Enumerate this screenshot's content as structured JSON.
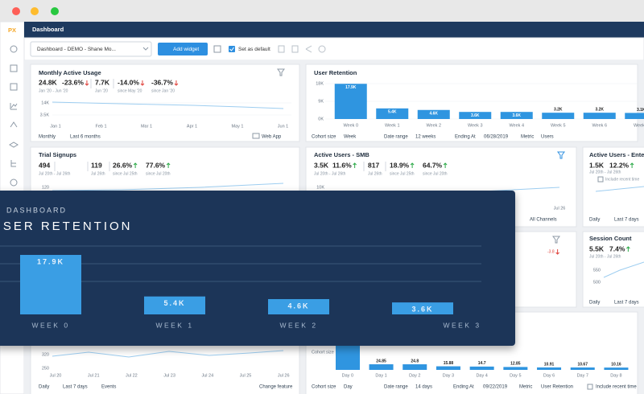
{
  "app": {
    "logo": "PX",
    "header": "Dashboard",
    "dashboard_select": "Dashboard - DEMO - Shane Mo...",
    "add_widget": "Add widget",
    "set_default": "Set as default"
  },
  "mau": {
    "title": "Monthly Active Usage",
    "stats": [
      {
        "value": "24.8K",
        "sub": "Jan '20 - Jun '20"
      },
      {
        "value": "-23.6%"
      },
      {
        "value": "7.7K",
        "sub": "Jun '20"
      },
      {
        "value": "-14.0%",
        "sub": "since May '20"
      },
      {
        "value": "-36.7%",
        "sub": "since Jan '20"
      }
    ],
    "y_labels": [
      "14K",
      "3.5K"
    ],
    "x_labels": [
      "Jan 1",
      "Feb 1",
      "Mar 1",
      "Apr 1",
      "May 1",
      "Jun 1"
    ],
    "footer": [
      "Monthly",
      "Last 6 months",
      "Web App"
    ]
  },
  "user_retention": {
    "title": "User Retention",
    "chart": {
      "type": "bar",
      "categories": [
        "Week 0",
        "Week 1",
        "Week 2",
        "Week 3",
        "Week 4",
        "Week 5",
        "Week 6",
        "Week 7"
      ],
      "values": [
        17900,
        5400,
        4600,
        3600,
        3600,
        3200,
        3200,
        3100
      ],
      "value_labels": [
        "17.9K",
        "5.4K",
        "4.6K",
        "3.6K",
        "3.6K",
        "3.2K",
        "3.2K",
        "3.1K"
      ],
      "ylim": [
        0,
        18000
      ],
      "yticks": [
        {
          "value": 18000,
          "label": "18K"
        },
        {
          "value": 9000,
          "label": "9K"
        },
        {
          "value": 0,
          "label": "0K"
        }
      ]
    },
    "footer": [
      "Cohort size",
      "Week",
      "Date range",
      "12 weeks",
      "Ending At",
      "06/28/2019",
      "Metric",
      "Users"
    ]
  },
  "trial_signups": {
    "title": "Trial Signups",
    "stats": [
      {
        "value": "494",
        "sub": "Jul 20th - Jul 26th"
      },
      {
        "value": "119",
        "sub": "Jul 26th"
      },
      {
        "value": "26.6%",
        "sub": "since Jul 25th"
      },
      {
        "value": "77.6%",
        "sub": "since Jul 20th"
      }
    ],
    "y_labels": [
      "120"
    ]
  },
  "active_smb": {
    "title": "Active Users - SMB",
    "stats": [
      {
        "value": "3.5K",
        "sub": "Jul 20th - Jul 26th"
      },
      {
        "value": "11.6%"
      },
      {
        "value": "817",
        "sub": "Jul 26th"
      },
      {
        "value": "18.9%",
        "sub": "since Jul 25th"
      },
      {
        "value": "64.7%",
        "sub": "since Jul 20th"
      }
    ],
    "y_labels": [
      "10K"
    ],
    "x_labels": [
      "Jul 26"
    ],
    "footer": [
      "All Channels"
    ]
  },
  "active_enterprise": {
    "title": "Active Users - Enterp",
    "stats": [
      {
        "value": "1.5K",
        "sub": "Jul 20th - Jul 26th"
      },
      {
        "value": "12.2%"
      }
    ],
    "include": "Include recent time",
    "footer": [
      "Daily",
      "Last 7 days"
    ]
  },
  "change_widget": {
    "stats": [
      {
        "value": "-3.8"
      }
    ]
  },
  "session_count": {
    "title": "Session Count",
    "stats": [
      {
        "value": "5.5K",
        "sub": "Jul 20th - Jul 26th"
      },
      {
        "value": "7.4%"
      }
    ],
    "y_labels": [
      "550",
      "500"
    ],
    "footer": [
      "Daily",
      "Last 7 days"
    ]
  },
  "events": {
    "y_labels": [
      "320",
      "250"
    ],
    "x_labels": [
      "Jul 20",
      "Jul 21",
      "Jul 22",
      "Jul 23",
      "Jul 24",
      "Jul 25",
      "Jul 26"
    ],
    "footer": [
      "Daily",
      "Last 7 days",
      "Events",
      "Change feature"
    ]
  },
  "day_retention": {
    "chart": {
      "type": "bar",
      "categories": [
        "Day 0",
        "Day 1",
        "Day 2",
        "Day 3",
        "Day 4",
        "Day 5",
        "Day 6",
        "Day 7",
        "Day 8"
      ],
      "values": [
        null,
        24.85,
        24.8,
        15.88,
        14.7,
        12.85,
        10.91,
        10.67,
        10.16
      ],
      "ylim": [
        0,
        100
      ]
    },
    "y_labels": [
      "Cohort size"
    ],
    "footer": [
      "Cohort size",
      "Day",
      "Date range",
      "14 days",
      "Ending At",
      "09/22/2019",
      "Metric",
      "User Retention",
      "Include recent time"
    ]
  },
  "overlay": {
    "kicker": "DASHBOARD",
    "title": "USER RETENTION",
    "chart": {
      "type": "bar",
      "categories": [
        "WEEK 0",
        "WEEK 1",
        "WEEK 2",
        "WEEK 3"
      ],
      "values": [
        17900,
        5400,
        4600,
        3600
      ],
      "value_labels": [
        "17.9K",
        "5.4K",
        "4.6K",
        "3.6K"
      ],
      "ylim": [
        0,
        18000
      ]
    }
  }
}
